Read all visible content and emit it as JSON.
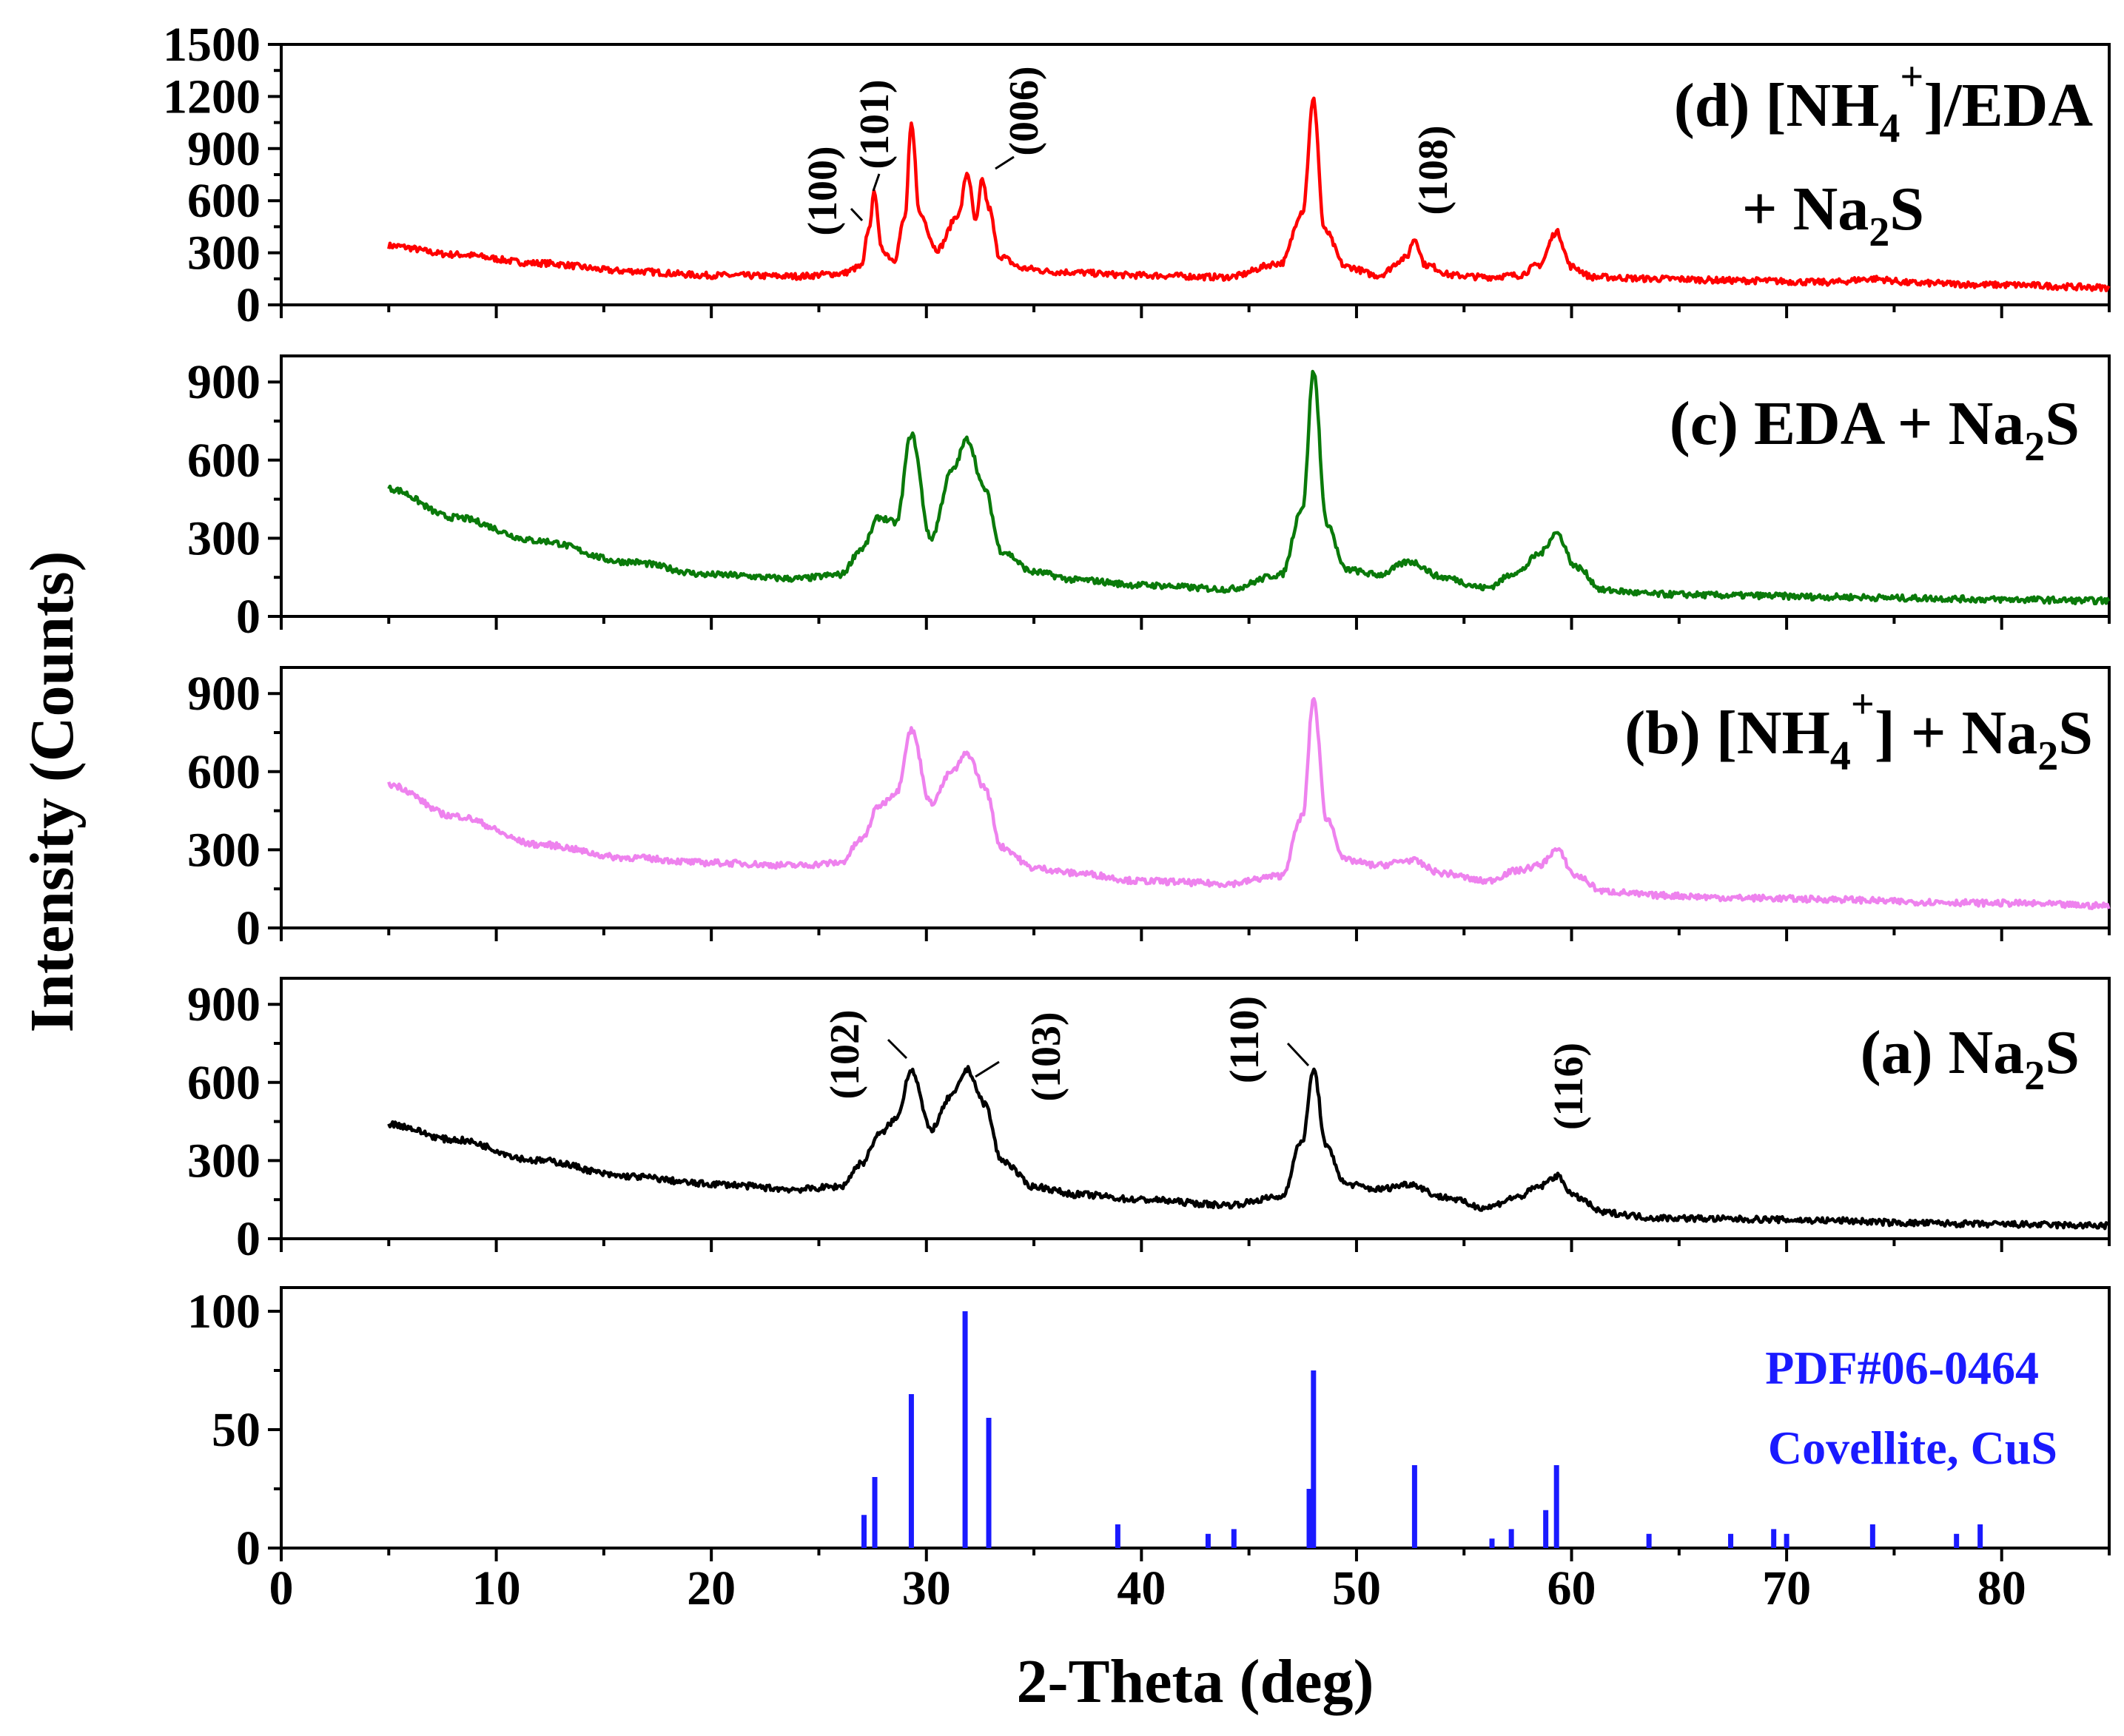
{
  "chart_data": {
    "type": "line",
    "title": "",
    "xlabel": "2-Theta (deg)",
    "ylabel": "Intensity (Counts)",
    "xlim": [
      0,
      85
    ],
    "xticks": [
      "0",
      "10",
      "20",
      "30",
      "40",
      "50",
      "60",
      "70",
      "80"
    ],
    "xtick_values": [
      0,
      10,
      20,
      30,
      40,
      50,
      60,
      70,
      80
    ],
    "panels": [
      {
        "id": "d",
        "label": "(d) [NH4+]/EDA + Na2S",
        "label_parts": {
          "p1": "(d) [NH",
          "sub1": "4",
          "sup1": "+",
          "p2": "]/EDA",
          "line2_p1": "+ Na",
          "line2_sub": "2",
          "line2_p2": "S"
        },
        "color": "#ff0000",
        "ylim": [
          0,
          1500
        ],
        "yticks": [
          "0",
          "300",
          "600",
          "900",
          "1200",
          "1500"
        ],
        "ytick_values": [
          0,
          300,
          600,
          900,
          1200,
          1500
        ],
        "x": [
          5,
          8,
          12,
          16,
          20,
          24,
          26,
          27,
          27.3,
          27.6,
          27.9,
          28.5,
          29.0,
          29.3,
          29.7,
          30.5,
          31.5,
          31.9,
          32.3,
          32.6,
          32.9,
          33.4,
          34.5,
          36,
          40,
          44,
          46.5,
          47.5,
          48.0,
          48.5,
          49.5,
          51,
          52.3,
          52.7,
          53.2,
          54.5,
          56,
          57.5,
          58.5,
          59.3,
          60,
          61,
          64,
          68,
          72,
          74,
          76,
          80,
          85
        ],
        "values": [
          340,
          290,
          240,
          195,
          170,
          165,
          180,
          220,
          430,
          650,
          320,
          260,
          500,
          1030,
          520,
          320,
          520,
          760,
          480,
          720,
          560,
          280,
          210,
          190,
          170,
          160,
          240,
          540,
          1180,
          430,
          220,
          170,
          270,
          380,
          230,
          170,
          160,
          170,
          230,
          420,
          220,
          160,
          150,
          140,
          130,
          150,
          125,
          115,
          100
        ]
      },
      {
        "id": "c",
        "label": "(c) EDA + Na2S",
        "label_parts": {
          "p1": "(c) EDA + Na",
          "sub1": "2",
          "p2": "S"
        },
        "color": "#0a7a0a",
        "ylim": [
          0,
          1000
        ],
        "yticks": [
          "0",
          "300",
          "600",
          "900"
        ],
        "ytick_values": [
          0,
          300,
          600,
          900
        ],
        "x": [
          5,
          8,
          12,
          16,
          20,
          24,
          26,
          27,
          27.8,
          28.6,
          29.3,
          30.2,
          31.2,
          31.9,
          32.7,
          33.5,
          35,
          37,
          40,
          44,
          46.5,
          47.5,
          48.0,
          48.6,
          49.5,
          51,
          52.5,
          54,
          56,
          57.5,
          58.5,
          59.3,
          60.2,
          61.5,
          64,
          68,
          72,
          76,
          80,
          85
        ],
        "values": [
          490,
          380,
          290,
          210,
          160,
          145,
          160,
          260,
          380,
          360,
          700,
          300,
          560,
          680,
          490,
          250,
          170,
          140,
          120,
          105,
          160,
          420,
          940,
          360,
          180,
          160,
          210,
          150,
          110,
          170,
          240,
          320,
          190,
          100,
          85,
          80,
          75,
          70,
          65,
          60
        ]
      },
      {
        "id": "b",
        "label": "(b) [NH4+] + Na2S",
        "label_parts": {
          "p1": "(b) [NH",
          "sub1": "4",
          "sup1": "+",
          "p2": "] + Na",
          "sub2": "2",
          "p3": "S"
        },
        "color": "#ee82ee",
        "ylim": [
          0,
          1000
        ],
        "yticks": [
          "0",
          "300",
          "600",
          "900"
        ],
        "ytick_values": [
          0,
          300,
          600,
          900
        ],
        "x": [
          5,
          8,
          12,
          16,
          20,
          24,
          26,
          27,
          27.8,
          28.6,
          29.3,
          30.2,
          31.2,
          31.9,
          32.7,
          33.5,
          35,
          37,
          40,
          44,
          46.5,
          47.5,
          48.0,
          48.6,
          49.5,
          51,
          52.5,
          54,
          56,
          57.5,
          58.5,
          59.3,
          60.2,
          61.5,
          64,
          68,
          72,
          76,
          80,
          85
        ],
        "values": [
          550,
          430,
          320,
          270,
          250,
          240,
          250,
          340,
          470,
          520,
          760,
          480,
          600,
          670,
          540,
          310,
          230,
          210,
          180,
          170,
          200,
          430,
          880,
          420,
          260,
          240,
          260,
          210,
          180,
          220,
          240,
          300,
          200,
          140,
          125,
          115,
          110,
          100,
          95,
          85
        ]
      },
      {
        "id": "a",
        "label": "(a) Na2S",
        "label_parts": {
          "p1": "(a) Na",
          "sub1": "2",
          "p2": "S"
        },
        "color": "#000000",
        "ylim": [
          0,
          1000
        ],
        "yticks": [
          "0",
          "300",
          "600",
          "900"
        ],
        "ytick_values": [
          0,
          300,
          600,
          900
        ],
        "x": [
          5,
          8,
          12,
          16,
          20,
          24,
          26,
          27,
          27.8,
          28.6,
          29.3,
          30.2,
          31.2,
          31.9,
          32.7,
          33.5,
          35,
          37,
          40,
          44,
          46.5,
          47.5,
          48.0,
          48.6,
          49.5,
          51,
          52.5,
          54,
          56,
          57.5,
          58.5,
          59.3,
          60.2,
          61.5,
          64,
          68,
          72,
          76,
          80,
          85
        ],
        "values": [
          440,
          380,
          300,
          240,
          210,
          190,
          200,
          290,
          400,
          460,
          650,
          420,
          550,
          650,
          520,
          300,
          200,
          170,
          150,
          130,
          160,
          380,
          650,
          350,
          210,
          190,
          210,
          160,
          120,
          160,
          200,
          240,
          160,
          100,
          80,
          75,
          70,
          60,
          55,
          50
        ]
      }
    ],
    "reference": {
      "label_line1": "PDF#06-0464",
      "label_line2": "Covellite, CuS",
      "color": "#1a1aff",
      "ylim": [
        0,
        110
      ],
      "yticks": [
        "0",
        "50",
        "100"
      ],
      "ytick_values": [
        0,
        50,
        100
      ],
      "x": [
        27.1,
        27.6,
        29.3,
        31.8,
        32.9,
        38.9,
        43.1,
        44.3,
        47.8,
        48.0,
        52.7,
        56.3,
        57.2,
        58.8,
        59.3,
        63.6,
        67.4,
        69.4,
        70.0,
        74.0,
        77.9,
        79.0
      ],
      "values": [
        14,
        30,
        65,
        100,
        55,
        10,
        6,
        8,
        25,
        75,
        35,
        4,
        8,
        16,
        35,
        6,
        6,
        8,
        6,
        10,
        6,
        10
      ]
    },
    "annotations": [
      {
        "panel": "d",
        "text": "(100)",
        "x": 27.1
      },
      {
        "panel": "d",
        "text": "(101)",
        "x": 27.6
      },
      {
        "panel": "d",
        "text": "(006)",
        "x": 32.9
      },
      {
        "panel": "d",
        "text": "(108)",
        "x": 52.7
      },
      {
        "panel": "a",
        "text": "(102)",
        "x": 29.3
      },
      {
        "panel": "a",
        "text": "(103)",
        "x": 31.9
      },
      {
        "panel": "a",
        "text": "(110)",
        "x": 48.0
      },
      {
        "panel": "a",
        "text": "(116)",
        "x": 59.3
      }
    ]
  }
}
